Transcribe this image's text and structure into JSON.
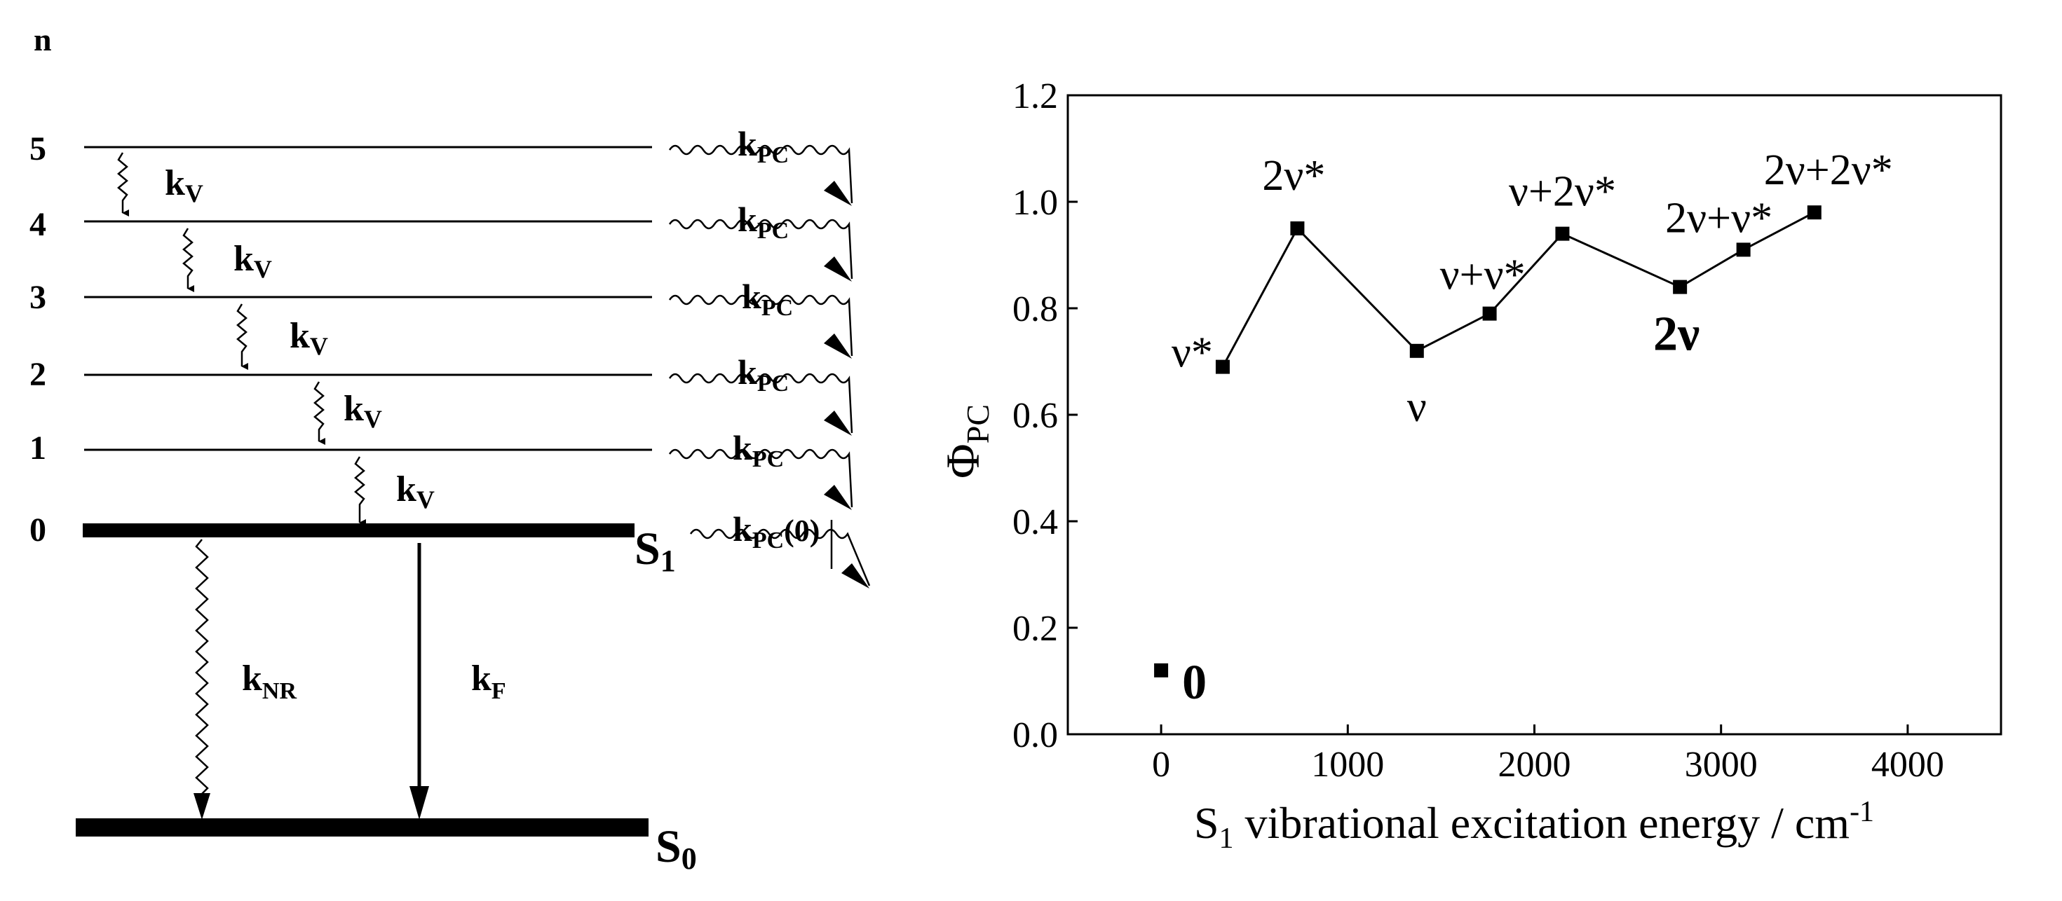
{
  "diagram": {
    "axis_label": "n",
    "levels": [
      "0",
      "1",
      "2",
      "3",
      "4",
      "5"
    ],
    "kv": "k",
    "kv_sub": "V",
    "kpc": "k",
    "kpc_sub": "PC",
    "kpc0_suffix": "(0)",
    "knr": "k",
    "knr_sub": "NR",
    "kf": "k",
    "kf_sub": "F",
    "s1": "S",
    "s1_sub": "1",
    "s0": "S",
    "s0_sub": "0"
  },
  "chart_data": {
    "type": "line",
    "title": "",
    "xlabel_main": "S",
    "xlabel_sub": "1",
    "xlabel_rest": " vibrational excitation energy / cm",
    "xlabel_sup": "-1",
    "ylabel_main": "Φ",
    "ylabel_sub": "PC",
    "xlim": [
      -500,
      4500
    ],
    "ylim": [
      0.0,
      1.2
    ],
    "xticks": [
      0,
      1000,
      2000,
      3000,
      4000
    ],
    "xtick_labels": [
      "0",
      "1000",
      "2000",
      "3000",
      "4000"
    ],
    "yticks": [
      0.0,
      0.2,
      0.4,
      0.6,
      0.8,
      1.0,
      1.2
    ],
    "ytick_labels": [
      "0.0",
      "0.2",
      "0.4",
      "0.6",
      "0.8",
      "1.0",
      "1.2"
    ],
    "grid": false,
    "series": [
      {
        "x": [
          0,
          330,
          730,
          1370,
          1760,
          2150,
          2780,
          3120,
          3500
        ],
        "y": [
          0.12,
          0.69,
          0.95,
          0.72,
          0.79,
          0.94,
          0.84,
          0.91,
          0.98
        ],
        "connected_from_index": 1,
        "marker": "square",
        "color": "#000000"
      }
    ],
    "annotations": [
      {
        "text": "0",
        "bold": true
      },
      {
        "text": "ν*",
        "bold": false
      },
      {
        "text": "2ν*",
        "bold": false
      },
      {
        "text": "ν",
        "bold": false
      },
      {
        "text": "ν+ν*",
        "bold": false
      },
      {
        "text": "ν+2ν*",
        "bold": false
      },
      {
        "text": "2ν",
        "bold": true
      },
      {
        "text": "2ν+ν*",
        "bold": false
      },
      {
        "text": "2ν+2ν*",
        "bold": false
      }
    ]
  }
}
